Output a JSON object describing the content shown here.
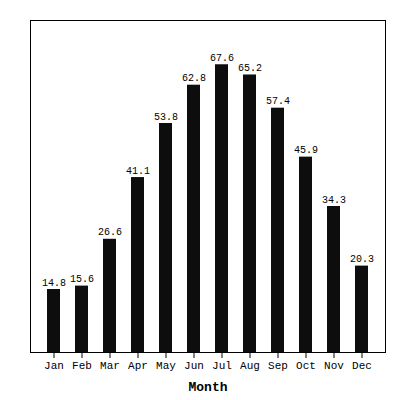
{
  "chart_data": {
    "type": "bar",
    "xlabel": "Month",
    "categories": [
      "Jan",
      "Feb",
      "Mar",
      "Apr",
      "May",
      "Jun",
      "Jul",
      "Aug",
      "Sep",
      "Oct",
      "Nov",
      "Dec"
    ],
    "values": [
      14.8,
      15.6,
      26.6,
      41.1,
      53.8,
      62.8,
      67.6,
      65.2,
      57.4,
      45.9,
      34.3,
      20.3
    ],
    "color": "#0d0d0d",
    "ylim": [
      0,
      78
    ],
    "data_labels": true,
    "tick_labels": "x",
    "grid": false
  }
}
